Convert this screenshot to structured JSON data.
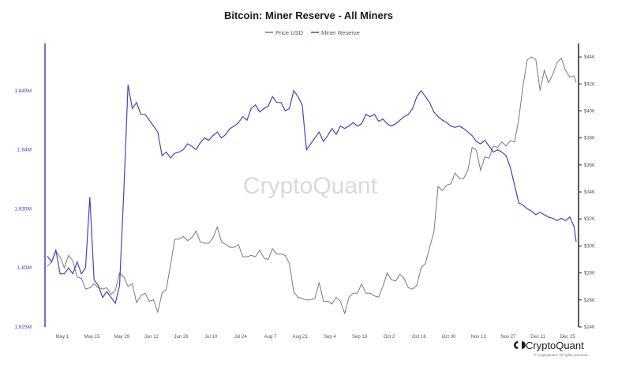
{
  "chart_data": {
    "type": "line",
    "title": "Bitcoin: Miner Reserve - All Miners",
    "x_ticks": [
      "May 1",
      "May 15",
      "May 29",
      "Jun 12",
      "Jun 26",
      "Jul 10",
      "Jul 24",
      "Aug 7",
      "Aug 21",
      "Sep 4",
      "Sep 18",
      "Oct 2",
      "Oct 16",
      "Oct 30",
      "Nov 13",
      "Nov 27",
      "Dec 11",
      "Dec 25"
    ],
    "y_left": {
      "ticks": [
        "1.825M",
        "1.83M",
        "1.835M",
        "1.84M",
        "1.845M"
      ],
      "values": [
        1825000,
        1830000,
        1835000,
        1840000,
        1845000
      ],
      "ylim": [
        1825000,
        1849000
      ]
    },
    "y_right": {
      "ticks": [
        "$24K",
        "$26K",
        "$28K",
        "$30K",
        "$32K",
        "$34K",
        "$36K",
        "$38K",
        "$40K",
        "$42K",
        "$44K"
      ],
      "values": [
        24000,
        26000,
        28000,
        30000,
        32000,
        34000,
        36000,
        38000,
        40000,
        42000,
        44000
      ],
      "ylim": [
        24000,
        45000
      ]
    },
    "grid": false,
    "legend_position": "top-center",
    "series": [
      {
        "name": "Price USD",
        "axis": "right",
        "color": "#7a7a7a",
        "points": [
          [
            "Apr 24",
            28500
          ],
          [
            "Apr 26",
            28800
          ],
          [
            "Apr 28",
            29600
          ],
          [
            "Apr 30",
            29200
          ],
          [
            "May 2",
            28400
          ],
          [
            "May 4",
            29300
          ],
          [
            "May 6",
            28900
          ],
          [
            "May 8",
            27700
          ],
          [
            "May 10",
            27600
          ],
          [
            "May 12",
            26800
          ],
          [
            "May 14",
            26900
          ],
          [
            "May 16",
            27200
          ],
          [
            "May 18",
            26900
          ],
          [
            "May 20",
            26800
          ],
          [
            "May 22",
            26900
          ],
          [
            "May 24",
            26400
          ],
          [
            "May 26",
            26700
          ],
          [
            "May 28",
            28000
          ],
          [
            "May 30",
            27700
          ],
          [
            "Jun 1",
            27000
          ],
          [
            "Jun 3",
            27200
          ],
          [
            "Jun 5",
            25800
          ],
          [
            "Jun 7",
            26300
          ],
          [
            "Jun 9",
            26500
          ],
          [
            "Jun 11",
            25900
          ],
          [
            "Jun 13",
            26000
          ],
          [
            "Jun 15",
            25100
          ],
          [
            "Jun 17",
            26500
          ],
          [
            "Jun 19",
            26800
          ],
          [
            "Jun 21",
            28600
          ],
          [
            "Jun 23",
            30500
          ],
          [
            "Jun 25",
            30500
          ],
          [
            "Jun 27",
            30700
          ],
          [
            "Jun 29",
            30400
          ],
          [
            "Jul 1",
            30600
          ],
          [
            "Jul 3",
            31100
          ],
          [
            "Jul 5",
            30300
          ],
          [
            "Jul 7",
            30200
          ],
          [
            "Jul 9",
            30200
          ],
          [
            "Jul 11",
            30600
          ],
          [
            "Jul 13",
            31400
          ],
          [
            "Jul 15",
            30300
          ],
          [
            "Jul 17",
            30100
          ],
          [
            "Jul 19",
            29900
          ],
          [
            "Jul 21",
            29900
          ],
          [
            "Jul 23",
            30100
          ],
          [
            "Jul 25",
            29200
          ],
          [
            "Jul 27",
            29200
          ],
          [
            "Jul 29",
            29300
          ],
          [
            "Jul 31",
            29200
          ],
          [
            "Aug 2",
            29700
          ],
          [
            "Aug 4",
            29100
          ],
          [
            "Aug 6",
            29000
          ],
          [
            "Aug 8",
            29800
          ],
          [
            "Aug 10",
            29400
          ],
          [
            "Aug 12",
            29400
          ],
          [
            "Aug 14",
            29300
          ],
          [
            "Aug 16",
            28700
          ],
          [
            "Aug 18",
            26600
          ],
          [
            "Aug 20",
            26200
          ],
          [
            "Aug 22",
            26100
          ],
          [
            "Aug 24",
            26000
          ],
          [
            "Aug 26",
            26000
          ],
          [
            "Aug 28",
            26100
          ],
          [
            "Aug 30",
            27300
          ],
          [
            "Sep 1",
            25900
          ],
          [
            "Sep 3",
            25900
          ],
          [
            "Sep 5",
            25700
          ],
          [
            "Sep 7",
            26200
          ],
          [
            "Sep 9",
            25900
          ],
          [
            "Sep 11",
            25000
          ],
          [
            "Sep 13",
            26200
          ],
          [
            "Sep 15",
            26500
          ],
          [
            "Sep 17",
            26500
          ],
          [
            "Sep 19",
            27200
          ],
          [
            "Sep 21",
            26500
          ],
          [
            "Sep 23",
            26500
          ],
          [
            "Sep 25",
            26300
          ],
          [
            "Sep 27",
            26200
          ],
          [
            "Sep 29",
            27000
          ],
          [
            "Oct 1",
            28000
          ],
          [
            "Oct 3",
            27500
          ],
          [
            "Oct 5",
            27400
          ],
          [
            "Oct 7",
            27900
          ],
          [
            "Oct 9",
            27600
          ],
          [
            "Oct 11",
            26900
          ],
          [
            "Oct 13",
            26800
          ],
          [
            "Oct 15",
            27100
          ],
          [
            "Oct 17",
            28400
          ],
          [
            "Oct 19",
            28700
          ],
          [
            "Oct 21",
            29900
          ],
          [
            "Oct 23",
            31000
          ],
          [
            "Oct 25",
            34400
          ],
          [
            "Oct 27",
            34100
          ],
          [
            "Oct 29",
            34500
          ],
          [
            "Oct 31",
            34600
          ],
          [
            "Nov 2",
            35400
          ],
          [
            "Nov 4",
            35000
          ],
          [
            "Nov 6",
            35000
          ],
          [
            "Nov 8",
            35600
          ],
          [
            "Nov 10",
            37300
          ],
          [
            "Nov 12",
            37100
          ],
          [
            "Nov 14",
            35600
          ],
          [
            "Nov 16",
            36600
          ],
          [
            "Nov 18",
            36500
          ],
          [
            "Nov 20",
            37400
          ],
          [
            "Nov 22",
            37300
          ],
          [
            "Nov 24",
            37700
          ],
          [
            "Nov 26",
            37400
          ],
          [
            "Nov 28",
            37800
          ],
          [
            "Nov 30",
            37700
          ],
          [
            "Dec 2",
            39400
          ],
          [
            "Dec 4",
            41900
          ],
          [
            "Dec 6",
            43800
          ],
          [
            "Dec 8",
            44000
          ],
          [
            "Dec 10",
            43800
          ],
          [
            "Dec 12",
            41500
          ],
          [
            "Dec 14",
            43000
          ],
          [
            "Dec 16",
            42100
          ],
          [
            "Dec 18",
            42700
          ],
          [
            "Dec 20",
            43600
          ],
          [
            "Dec 22",
            43900
          ],
          [
            "Dec 24",
            43000
          ],
          [
            "Dec 26",
            42500
          ],
          [
            "Dec 28",
            42600
          ],
          [
            "Dec 29",
            42100
          ]
        ]
      },
      {
        "name": "Miner Reserve",
        "axis": "left",
        "color": "#4a3fc4",
        "points": [
          [
            "Apr 24",
            1831000
          ],
          [
            "Apr 26",
            1830500
          ],
          [
            "Apr 28",
            1831500
          ],
          [
            "Apr 30",
            1829500
          ],
          [
            "May 2",
            1829500
          ],
          [
            "May 4",
            1830000
          ],
          [
            "May 6",
            1829500
          ],
          [
            "May 8",
            1830500
          ],
          [
            "May 10",
            1829500
          ],
          [
            "May 12",
            1830000
          ],
          [
            "May 14",
            1836000
          ],
          [
            "May 16",
            1829000
          ],
          [
            "May 18",
            1828500
          ],
          [
            "May 20",
            1827500
          ],
          [
            "May 22",
            1828000
          ],
          [
            "May 24",
            1827500
          ],
          [
            "May 26",
            1827000
          ],
          [
            "May 28",
            1828500
          ],
          [
            "May 30",
            1836500
          ],
          [
            "Jun 1",
            1845500
          ],
          [
            "Jun 3",
            1843500
          ],
          [
            "Jun 5",
            1844000
          ],
          [
            "Jun 7",
            1843000
          ],
          [
            "Jun 9",
            1843000
          ],
          [
            "Jun 11",
            1842500
          ],
          [
            "Jun 13",
            1842000
          ],
          [
            "Jun 15",
            1841500
          ],
          [
            "Jun 17",
            1839500
          ],
          [
            "Jun 19",
            1839800
          ],
          [
            "Jun 21",
            1839300
          ],
          [
            "Jun 23",
            1839700
          ],
          [
            "Jun 25",
            1839800
          ],
          [
            "Jun 27",
            1840000
          ],
          [
            "Jun 29",
            1840500
          ],
          [
            "Jul 1",
            1840300
          ],
          [
            "Jul 3",
            1840000
          ],
          [
            "Jul 5",
            1840600
          ],
          [
            "Jul 7",
            1841000
          ],
          [
            "Jul 9",
            1840800
          ],
          [
            "Jul 11",
            1841200
          ],
          [
            "Jul 13",
            1841500
          ],
          [
            "Jul 15",
            1841000
          ],
          [
            "Jul 17",
            1841300
          ],
          [
            "Jul 19",
            1841800
          ],
          [
            "Jul 21",
            1842000
          ],
          [
            "Jul 23",
            1842300
          ],
          [
            "Jul 25",
            1842800
          ],
          [
            "Jul 27",
            1842500
          ],
          [
            "Jul 29",
            1843500
          ],
          [
            "Jul 31",
            1843800
          ],
          [
            "Aug 2",
            1843200
          ],
          [
            "Aug 4",
            1843500
          ],
          [
            "Aug 6",
            1843700
          ],
          [
            "Aug 8",
            1844500
          ],
          [
            "Aug 10",
            1844000
          ],
          [
            "Aug 12",
            1844000
          ],
          [
            "Aug 14",
            1843300
          ],
          [
            "Aug 16",
            1843500
          ],
          [
            "Aug 18",
            1845000
          ],
          [
            "Aug 20",
            1844500
          ],
          [
            "Aug 22",
            1843800
          ],
          [
            "Aug 24",
            1840000
          ],
          [
            "Aug 26",
            1840500
          ],
          [
            "Aug 28",
            1841000
          ],
          [
            "Aug 30",
            1841500
          ],
          [
            "Sep 1",
            1840700
          ],
          [
            "Sep 3",
            1841200
          ],
          [
            "Sep 5",
            1841800
          ],
          [
            "Sep 7",
            1841300
          ],
          [
            "Sep 9",
            1842000
          ],
          [
            "Sep 11",
            1841800
          ],
          [
            "Sep 13",
            1842000
          ],
          [
            "Sep 15",
            1842300
          ],
          [
            "Sep 17",
            1842000
          ],
          [
            "Sep 19",
            1842200
          ],
          [
            "Sep 21",
            1843000
          ],
          [
            "Sep 23",
            1842800
          ],
          [
            "Sep 25",
            1843000
          ],
          [
            "Sep 27",
            1842400
          ],
          [
            "Sep 29",
            1842600
          ],
          [
            "Oct 1",
            1842200
          ],
          [
            "Oct 3",
            1842000
          ],
          [
            "Oct 5",
            1842200
          ],
          [
            "Oct 7",
            1842500
          ],
          [
            "Oct 9",
            1842800
          ],
          [
            "Oct 11",
            1843000
          ],
          [
            "Oct 13",
            1843500
          ],
          [
            "Oct 15",
            1844500
          ],
          [
            "Oct 17",
            1845000
          ],
          [
            "Oct 19",
            1844500
          ],
          [
            "Oct 21",
            1844000
          ],
          [
            "Oct 23",
            1843200
          ],
          [
            "Oct 25",
            1842800
          ],
          [
            "Oct 27",
            1842500
          ],
          [
            "Oct 29",
            1842300
          ],
          [
            "Oct 31",
            1842000
          ],
          [
            "Nov 2",
            1841900
          ],
          [
            "Nov 4",
            1842000
          ],
          [
            "Nov 6",
            1841800
          ],
          [
            "Nov 8",
            1841500
          ],
          [
            "Nov 10",
            1841200
          ],
          [
            "Nov 12",
            1840700
          ],
          [
            "Nov 14",
            1840500
          ],
          [
            "Nov 16",
            1840800
          ],
          [
            "Nov 18",
            1840300
          ],
          [
            "Nov 20",
            1839800
          ],
          [
            "Nov 22",
            1840000
          ],
          [
            "Nov 24",
            1839800
          ],
          [
            "Nov 26",
            1839500
          ],
          [
            "Nov 28",
            1838500
          ],
          [
            "Nov 30",
            1837000
          ],
          [
            "Dec 2",
            1835500
          ],
          [
            "Dec 4",
            1835300
          ],
          [
            "Dec 6",
            1835000
          ],
          [
            "Dec 8",
            1834800
          ],
          [
            "Dec 10",
            1834500
          ],
          [
            "Dec 12",
            1834700
          ],
          [
            "Dec 14",
            1834500
          ],
          [
            "Dec 16",
            1834300
          ],
          [
            "Dec 18",
            1834200
          ],
          [
            "Dec 20",
            1834000
          ],
          [
            "Dec 22",
            1834200
          ],
          [
            "Dec 24",
            1834000
          ],
          [
            "Dec 26",
            1834300
          ],
          [
            "Dec 28",
            1833500
          ],
          [
            "Dec 29",
            1832200
          ]
        ]
      }
    ]
  },
  "brand": {
    "name": "CryptoQuant",
    "rights": "© CryptoQuant. All rights reserved."
  },
  "watermark": "CryptoQuant"
}
